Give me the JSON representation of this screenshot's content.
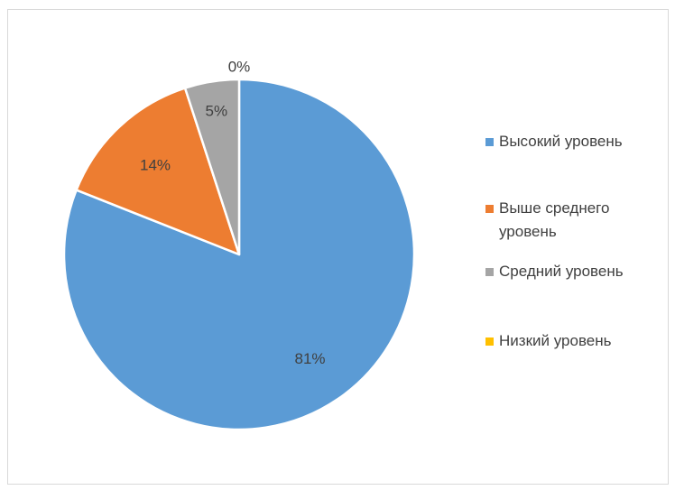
{
  "chart_data": {
    "type": "pie",
    "title": "",
    "categories": [
      "Высокий уровень",
      "Выше среднего уровень",
      "Средний уровень",
      "Низкий уровень"
    ],
    "values": [
      81,
      14,
      5,
      0
    ],
    "labels": [
      "81%",
      "14%",
      "5%",
      "0%"
    ],
    "colors": [
      "#5b9bd5",
      "#ed7d31",
      "#a5a5a5",
      "#ffc000"
    ],
    "legend": {
      "position": "right",
      "entries": [
        "Высокий уровень",
        "Выше среднего уровень",
        "Средний уровень",
        "Низкий уровень"
      ]
    },
    "start_angle": "12 o'clock",
    "direction": "clockwise"
  }
}
